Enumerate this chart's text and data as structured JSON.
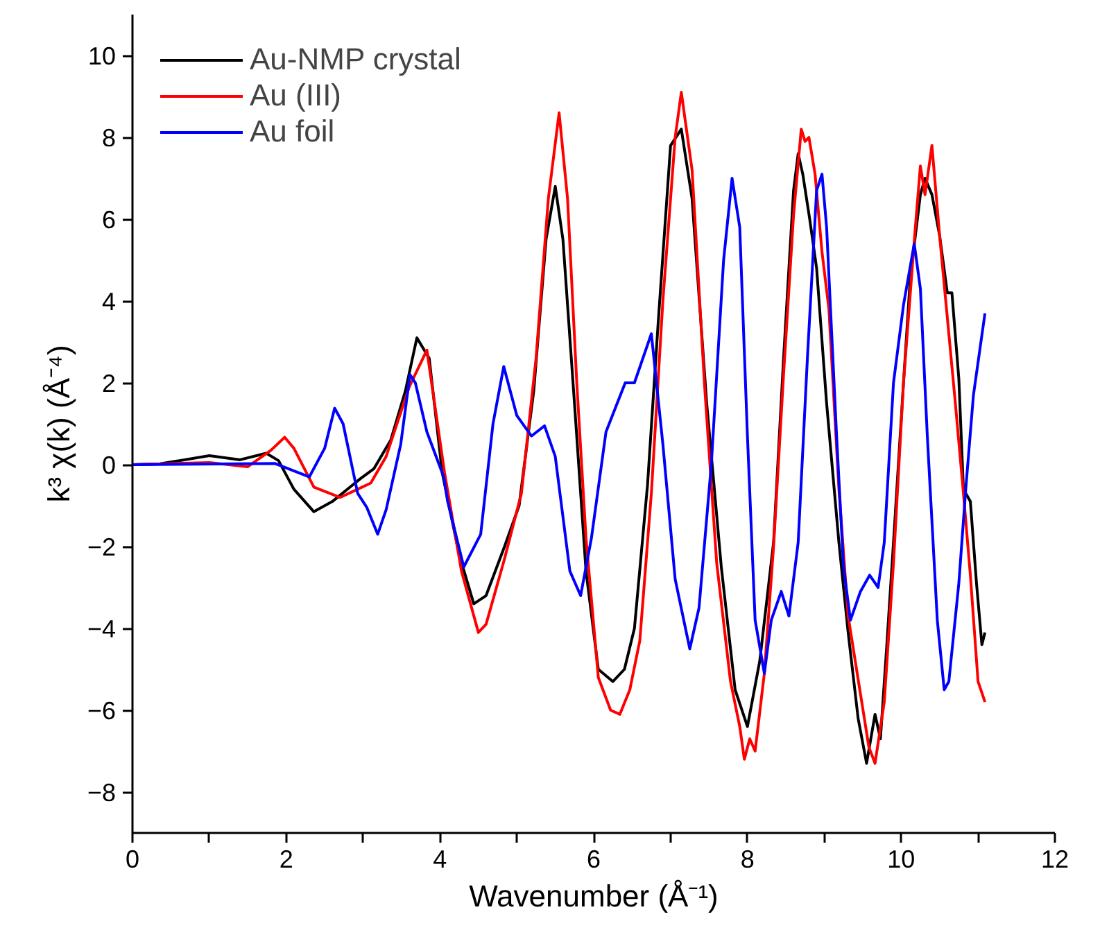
{
  "chart_data": {
    "type": "line",
    "xlabel": "Wavenumber (Å⁻¹)",
    "ylabel": "k³ χ(k) (Å⁻⁴)",
    "xlim": [
      0,
      12
    ],
    "ylim": [
      -9,
      11
    ],
    "xticks": [
      0,
      {
        "value": 1,
        "label": null
      },
      2,
      {
        "value": 3,
        "label": null
      },
      4,
      {
        "value": 5,
        "label": null
      },
      6,
      {
        "value": 7,
        "label": null
      },
      8,
      {
        "value": 9,
        "label": null
      },
      10,
      {
        "value": 11,
        "label": null
      },
      12
    ],
    "yticks": [
      -8,
      -6,
      -4,
      -2,
      0,
      2,
      4,
      6,
      8,
      10
    ],
    "grid": false,
    "legend": "top left",
    "line_style": "solid",
    "marker": "none",
    "series": [
      {
        "name": "Au-NMP crystal",
        "color": "#000000",
        "x": [
          0,
          0.36,
          1.0,
          1.4,
          1.74,
          1.9,
          2.1,
          2.36,
          2.6,
          2.96,
          3.14,
          3.36,
          3.55,
          3.7,
          3.86,
          4.03,
          4.25,
          4.44,
          4.6,
          4.84,
          5.03,
          5.22,
          5.38,
          5.5,
          5.6,
          5.75,
          5.9,
          6.06,
          6.25,
          6.4,
          6.53,
          6.7,
          6.84,
          7.0,
          7.14,
          7.28,
          7.47,
          7.66,
          7.84,
          8.0,
          8.16,
          8.34,
          8.47,
          8.6,
          8.66,
          8.72,
          8.81,
          8.9,
          9.03,
          9.19,
          9.31,
          9.44,
          9.55,
          9.66,
          9.73,
          9.81,
          9.9,
          10.03,
          10.12,
          10.25,
          10.31,
          10.4,
          10.5,
          10.6,
          10.66,
          10.75,
          10.81,
          10.9,
          10.98,
          11.05,
          11.09
        ],
        "values": [
          0,
          0.02,
          0.22,
          0.12,
          0.28,
          0.1,
          -0.6,
          -1.15,
          -0.9,
          -0.35,
          -0.1,
          0.6,
          1.8,
          3.1,
          2.6,
          -0.2,
          -2.2,
          -3.4,
          -3.2,
          -2.0,
          -1.0,
          1.8,
          5.5,
          6.8,
          5.5,
          1.5,
          -2.6,
          -5.0,
          -5.3,
          -5.0,
          -4.0,
          -0.5,
          3.5,
          7.8,
          8.2,
          6.5,
          1.5,
          -2.5,
          -5.5,
          -6.4,
          -4.8,
          -1.9,
          2.6,
          6.7,
          7.6,
          7.1,
          6.0,
          4.8,
          1.5,
          -1.9,
          -4.1,
          -6.2,
          -7.3,
          -6.1,
          -6.7,
          -4.5,
          -1.9,
          2.0,
          4.6,
          6.6,
          7.0,
          6.6,
          5.6,
          4.2,
          4.2,
          2.1,
          -0.6,
          -0.9,
          -2.9,
          -4.4,
          -4.1
        ]
      },
      {
        "name": "Au (III)",
        "color": "#ff0000",
        "x": [
          0,
          1.0,
          1.5,
          1.8,
          1.98,
          2.1,
          2.36,
          2.7,
          3.1,
          3.3,
          3.6,
          3.83,
          4.06,
          4.28,
          4.5,
          4.6,
          4.84,
          5.06,
          5.25,
          5.41,
          5.55,
          5.66,
          5.78,
          5.9,
          6.06,
          6.22,
          6.34,
          6.47,
          6.6,
          6.75,
          6.9,
          7.06,
          7.14,
          7.28,
          7.44,
          7.6,
          7.78,
          7.9,
          7.96,
          8.03,
          8.1,
          8.22,
          8.34,
          8.47,
          8.6,
          8.7,
          8.75,
          8.8,
          8.88,
          8.97,
          9.06,
          9.19,
          9.31,
          9.47,
          9.58,
          9.66,
          9.78,
          9.9,
          10.03,
          10.18,
          10.25,
          10.31,
          10.4,
          10.5,
          10.59,
          10.7,
          10.81,
          10.9,
          11.0,
          11.09
        ],
        "values": [
          0,
          0.05,
          -0.05,
          0.35,
          0.67,
          0.4,
          -0.55,
          -0.8,
          -0.45,
          0.2,
          1.9,
          2.8,
          -0.2,
          -2.6,
          -4.1,
          -3.9,
          -2.3,
          -0.7,
          2.6,
          6.5,
          8.6,
          6.5,
          2.0,
          -1.8,
          -5.2,
          -6.0,
          -6.1,
          -5.5,
          -4.3,
          -0.7,
          4.0,
          8.0,
          9.1,
          7.2,
          2.0,
          -2.4,
          -5.3,
          -6.4,
          -7.2,
          -6.7,
          -7.0,
          -5.1,
          -2.0,
          2.2,
          6.1,
          8.2,
          7.9,
          8.0,
          7.1,
          5.2,
          3.8,
          -0.6,
          -3.7,
          -5.6,
          -6.9,
          -7.3,
          -5.8,
          -2.4,
          2.0,
          5.7,
          7.3,
          6.6,
          7.8,
          5.6,
          3.8,
          1.6,
          -0.7,
          -2.7,
          -5.3,
          -5.8
        ]
      },
      {
        "name": "Au foil",
        "color": "#0000ff",
        "x": [
          0,
          1.85,
          2.3,
          2.5,
          2.63,
          2.74,
          2.93,
          3.05,
          3.19,
          3.3,
          3.49,
          3.61,
          3.68,
          3.83,
          4.05,
          4.1,
          4.31,
          4.53,
          4.69,
          4.83,
          5.0,
          5.19,
          5.36,
          5.5,
          5.69,
          5.83,
          5.97,
          6.16,
          6.41,
          6.53,
          6.75,
          6.9,
          7.06,
          7.25,
          7.37,
          7.53,
          7.69,
          7.8,
          7.9,
          8.0,
          8.1,
          8.22,
          8.31,
          8.44,
          8.54,
          8.66,
          8.78,
          8.9,
          8.97,
          9.03,
          9.16,
          9.25,
          9.34,
          9.47,
          9.59,
          9.7,
          9.78,
          9.9,
          10.03,
          10.17,
          10.25,
          10.34,
          10.47,
          10.56,
          10.62,
          10.75,
          10.84,
          10.94,
          11.09
        ],
        "values": [
          0,
          0.03,
          -0.3,
          0.4,
          1.38,
          1.0,
          -0.7,
          -1.05,
          -1.7,
          -1.1,
          0.5,
          2.2,
          2.0,
          0.8,
          -0.3,
          -0.9,
          -2.5,
          -1.7,
          1.0,
          2.4,
          1.2,
          0.7,
          0.95,
          0.2,
          -2.6,
          -3.2,
          -1.8,
          0.8,
          2.0,
          2.0,
          3.2,
          0.5,
          -2.8,
          -4.5,
          -3.5,
          0.0,
          5.0,
          7.0,
          5.8,
          0.7,
          -3.8,
          -5.1,
          -3.8,
          -3.1,
          -3.7,
          -1.9,
          2.6,
          6.7,
          7.1,
          5.8,
          0.7,
          -2.5,
          -3.8,
          -3.1,
          -2.7,
          -3.0,
          -1.9,
          2.0,
          3.9,
          5.4,
          4.3,
          0.7,
          -3.8,
          -5.5,
          -5.3,
          -2.9,
          -0.6,
          1.7,
          3.7
        ]
      }
    ]
  }
}
